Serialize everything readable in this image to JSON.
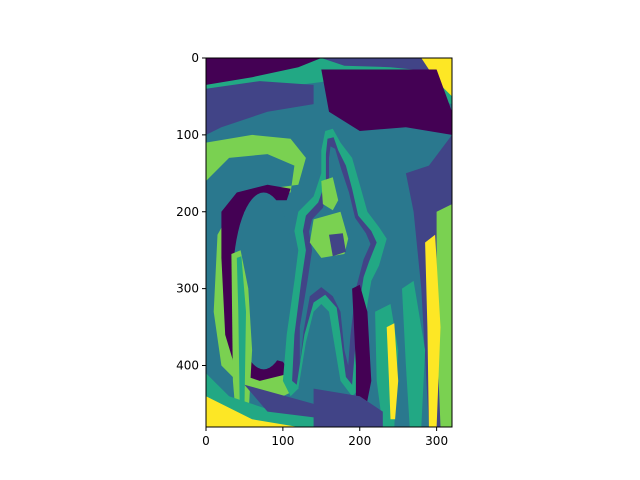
{
  "chart_data": {
    "type": "heatmap",
    "title": "",
    "xlabel": "",
    "ylabel": "",
    "image_size": [
      320,
      480
    ],
    "colormap": "viridis",
    "discrete_levels": 6,
    "xlim": [
      0,
      320
    ],
    "ylim": [
      480,
      0
    ],
    "y_inverted": true,
    "x_ticks": [
      0,
      100,
      200,
      300
    ],
    "y_ticks": [
      0,
      100,
      200,
      300,
      400
    ],
    "x_tick_labels": [
      "0",
      "100",
      "200",
      "300"
    ],
    "y_tick_labels": [
      "0",
      "100",
      "200",
      "300",
      "400"
    ],
    "level_colors": [
      "#440154",
      "#414487",
      "#2a788e",
      "#22a884",
      "#7ad151",
      "#fde725"
    ],
    "grid": false,
    "legend": "none"
  }
}
